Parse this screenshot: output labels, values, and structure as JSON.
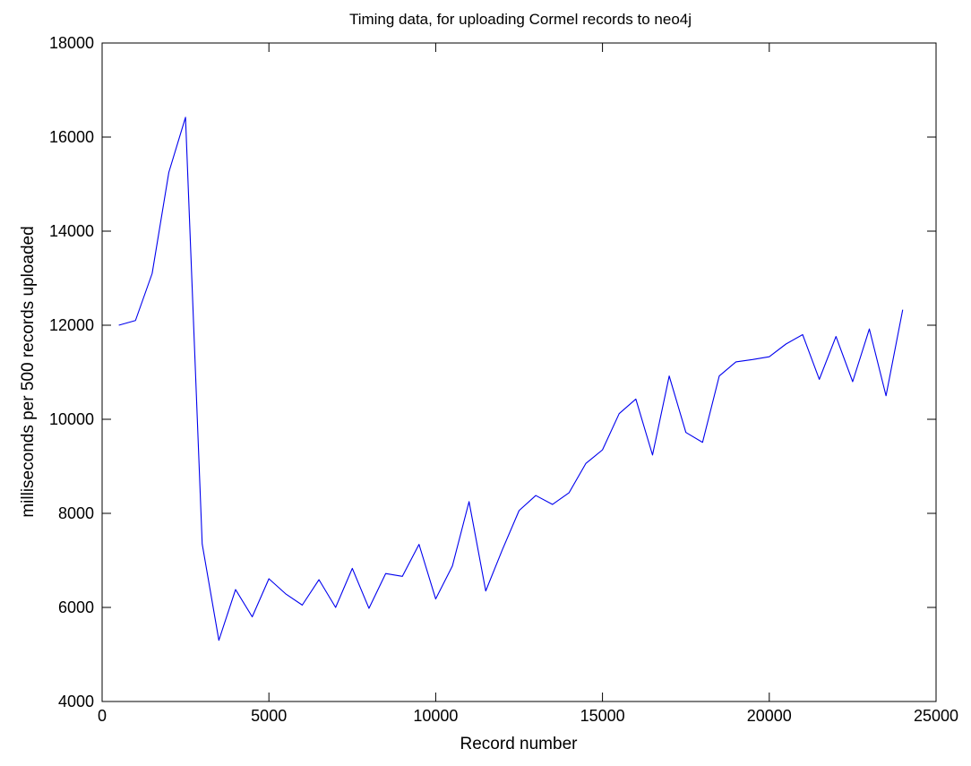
{
  "chart_data": {
    "type": "line",
    "title": "Timing data, for uploading Cormel records to neo4j",
    "xlabel": "Record number",
    "ylabel": "milliseconds per 500 records uploaded",
    "xlim": [
      0,
      25000
    ],
    "ylim": [
      4000,
      18000
    ],
    "xticks": [
      0,
      5000,
      10000,
      15000,
      20000,
      25000
    ],
    "yticks": [
      4000,
      6000,
      8000,
      10000,
      12000,
      14000,
      16000,
      18000
    ],
    "grid": false,
    "legend": "none",
    "series_color": "#0000ee",
    "series": [
      {
        "x": [
          500,
          1000,
          1500,
          2000,
          2500,
          3000,
          3500,
          4000,
          4500,
          5000,
          5500,
          6000,
          6500,
          7000,
          7500,
          8000,
          8500,
          9000,
          9500,
          10000,
          10500,
          11000,
          11500,
          12000,
          12500,
          13000,
          13500,
          14000,
          14500,
          15000,
          15500,
          16000,
          16500,
          17000,
          17500,
          18000,
          18500,
          19000,
          19500,
          20000,
          20500,
          21000,
          21500,
          22000,
          22500,
          23000,
          23500,
          24000
        ],
        "values": [
          12000,
          12100,
          13100,
          15250,
          16420,
          7350,
          5300,
          6380,
          5800,
          6610,
          6290,
          6050,
          6590,
          6000,
          6830,
          5980,
          6720,
          6660,
          7340,
          6180,
          6880,
          8250,
          6350,
          7230,
          8060,
          8380,
          8190,
          8440,
          9060,
          9350,
          10120,
          10430,
          9240,
          10920,
          9720,
          9510,
          10920,
          11220,
          11270,
          11330,
          11600,
          11800,
          10850,
          11760,
          10800,
          11920,
          10500,
          12330
        ]
      }
    ]
  }
}
